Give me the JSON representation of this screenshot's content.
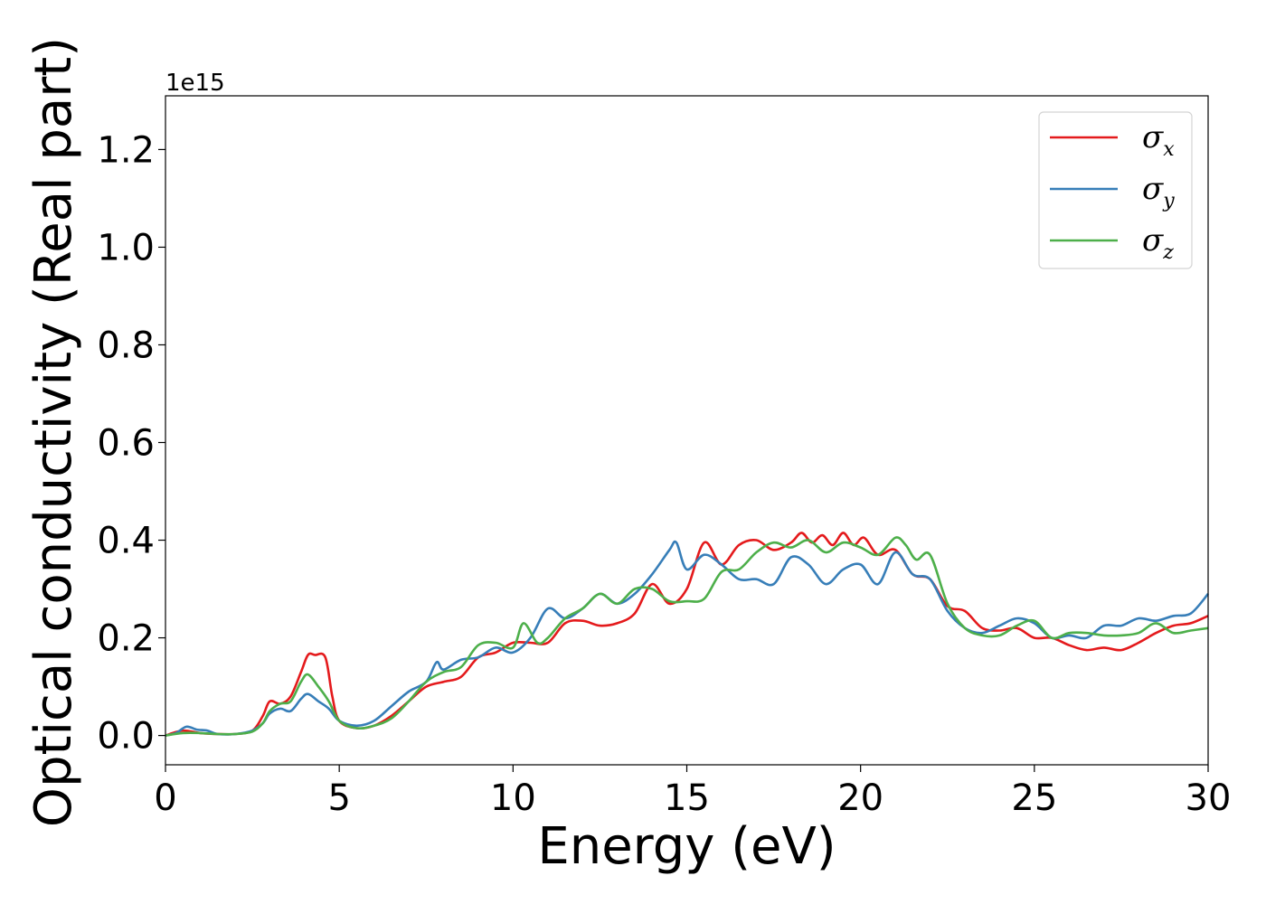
{
  "chart_data": {
    "type": "line",
    "title": "",
    "xlabel": "Energy (eV)",
    "ylabel": "Optical conductivity (Real part)",
    "y_offset_text": "1e15",
    "xlim": [
      0,
      30
    ],
    "ylim": [
      -0.06,
      1.31
    ],
    "x_ticks": [
      0,
      5,
      10,
      15,
      20,
      25,
      30
    ],
    "x_tick_labels": [
      "0",
      "5",
      "10",
      "15",
      "20",
      "25",
      "30"
    ],
    "y_ticks": [
      0.0,
      0.2,
      0.4,
      0.6,
      0.8,
      1.0,
      1.2
    ],
    "y_tick_labels": [
      "0.0",
      "0.2",
      "0.4",
      "0.6",
      "0.8",
      "1.0",
      "1.2"
    ],
    "grid": false,
    "legend_position": "top-right",
    "series": [
      {
        "name": "σx",
        "symbol": "σ",
        "subscript": "x",
        "color": "#e41a1c",
        "x": [
          0,
          0.5,
          1,
          1.5,
          2,
          2.5,
          2.8,
          3,
          3.3,
          3.6,
          3.9,
          4.1,
          4.3,
          4.6,
          4.8,
          5,
          5.5,
          6,
          6.5,
          7,
          7.5,
          8,
          8.5,
          9,
          9.5,
          10,
          10.5,
          11,
          11.5,
          12,
          12.5,
          13,
          13.5,
          14,
          14.5,
          15,
          15.5,
          16,
          16.5,
          17,
          17.5,
          18,
          18.3,
          18.6,
          18.9,
          19.2,
          19.5,
          19.8,
          20.1,
          20.5,
          21,
          21.5,
          22,
          22.5,
          23,
          23.5,
          24,
          24.5,
          25,
          25.5,
          26,
          26.5,
          27,
          27.5,
          28,
          28.5,
          29,
          29.5,
          30
        ],
        "y": [
          0.0,
          0.01,
          0.005,
          0.003,
          0.003,
          0.01,
          0.04,
          0.07,
          0.065,
          0.08,
          0.13,
          0.165,
          0.165,
          0.16,
          0.08,
          0.03,
          0.015,
          0.02,
          0.04,
          0.07,
          0.1,
          0.11,
          0.12,
          0.16,
          0.17,
          0.19,
          0.19,
          0.19,
          0.23,
          0.235,
          0.225,
          0.23,
          0.25,
          0.31,
          0.27,
          0.3,
          0.395,
          0.35,
          0.39,
          0.4,
          0.38,
          0.395,
          0.415,
          0.395,
          0.41,
          0.39,
          0.415,
          0.39,
          0.405,
          0.37,
          0.38,
          0.33,
          0.32,
          0.265,
          0.255,
          0.22,
          0.215,
          0.22,
          0.2,
          0.2,
          0.185,
          0.175,
          0.18,
          0.175,
          0.19,
          0.21,
          0.225,
          0.23,
          0.245
        ]
      },
      {
        "name": "σy",
        "symbol": "σ",
        "subscript": "y",
        "color": "#377eb8",
        "x": [
          0,
          0.3,
          0.6,
          0.9,
          1.2,
          1.5,
          2,
          2.5,
          2.8,
          3,
          3.3,
          3.6,
          3.9,
          4.1,
          4.4,
          4.7,
          5,
          5.5,
          6,
          6.5,
          7,
          7.5,
          7.8,
          8,
          8.5,
          9,
          9.5,
          10,
          10.5,
          11,
          11.5,
          12,
          12.5,
          13,
          13.5,
          14,
          14.5,
          14.7,
          15,
          15.5,
          16,
          16.5,
          17,
          17.5,
          18,
          18.5,
          19,
          19.5,
          20,
          20.5,
          21,
          21.5,
          22,
          22.5,
          23,
          23.5,
          24,
          24.5,
          25,
          25.5,
          26,
          26.5,
          27,
          27.5,
          28,
          28.5,
          29,
          29.5,
          30
        ],
        "y": [
          0.0,
          0.005,
          0.018,
          0.012,
          0.01,
          0.003,
          0.003,
          0.01,
          0.025,
          0.045,
          0.055,
          0.05,
          0.075,
          0.085,
          0.07,
          0.055,
          0.03,
          0.02,
          0.03,
          0.06,
          0.09,
          0.11,
          0.15,
          0.135,
          0.155,
          0.16,
          0.18,
          0.17,
          0.2,
          0.26,
          0.24,
          0.26,
          0.29,
          0.27,
          0.29,
          0.33,
          0.38,
          0.395,
          0.34,
          0.37,
          0.35,
          0.32,
          0.32,
          0.31,
          0.365,
          0.35,
          0.31,
          0.34,
          0.35,
          0.31,
          0.375,
          0.33,
          0.32,
          0.255,
          0.22,
          0.21,
          0.225,
          0.24,
          0.23,
          0.2,
          0.205,
          0.2,
          0.225,
          0.225,
          0.24,
          0.235,
          0.245,
          0.25,
          0.29
        ]
      },
      {
        "name": "σz",
        "symbol": "σ",
        "subscript": "z",
        "color": "#4daf4a",
        "x": [
          0,
          0.5,
          1,
          1.5,
          2,
          2.5,
          2.8,
          3,
          3.3,
          3.6,
          3.9,
          4.1,
          4.4,
          4.7,
          5,
          5.5,
          6,
          6.5,
          7,
          7.5,
          8,
          8.5,
          9,
          9.5,
          10,
          10.3,
          10.7,
          11,
          11.5,
          12,
          12.5,
          13,
          13.5,
          14,
          14.5,
          15,
          15.5,
          16,
          16.5,
          17,
          17.5,
          18,
          18.5,
          19,
          19.5,
          20,
          20.5,
          21,
          21.3,
          21.6,
          22,
          22.5,
          23,
          23.5,
          24,
          24.5,
          25,
          25.5,
          26,
          26.5,
          27,
          27.5,
          28,
          28.5,
          29,
          29.5,
          30
        ],
        "y": [
          0.0,
          0.005,
          0.005,
          0.003,
          0.003,
          0.008,
          0.025,
          0.05,
          0.065,
          0.07,
          0.11,
          0.125,
          0.1,
          0.07,
          0.03,
          0.015,
          0.02,
          0.035,
          0.07,
          0.11,
          0.13,
          0.14,
          0.185,
          0.19,
          0.18,
          0.23,
          0.19,
          0.2,
          0.24,
          0.26,
          0.29,
          0.27,
          0.3,
          0.3,
          0.275,
          0.275,
          0.28,
          0.335,
          0.34,
          0.375,
          0.395,
          0.385,
          0.4,
          0.375,
          0.395,
          0.385,
          0.37,
          0.405,
          0.39,
          0.36,
          0.37,
          0.27,
          0.22,
          0.205,
          0.205,
          0.225,
          0.235,
          0.2,
          0.21,
          0.21,
          0.205,
          0.205,
          0.21,
          0.23,
          0.21,
          0.215,
          0.22
        ]
      }
    ]
  }
}
